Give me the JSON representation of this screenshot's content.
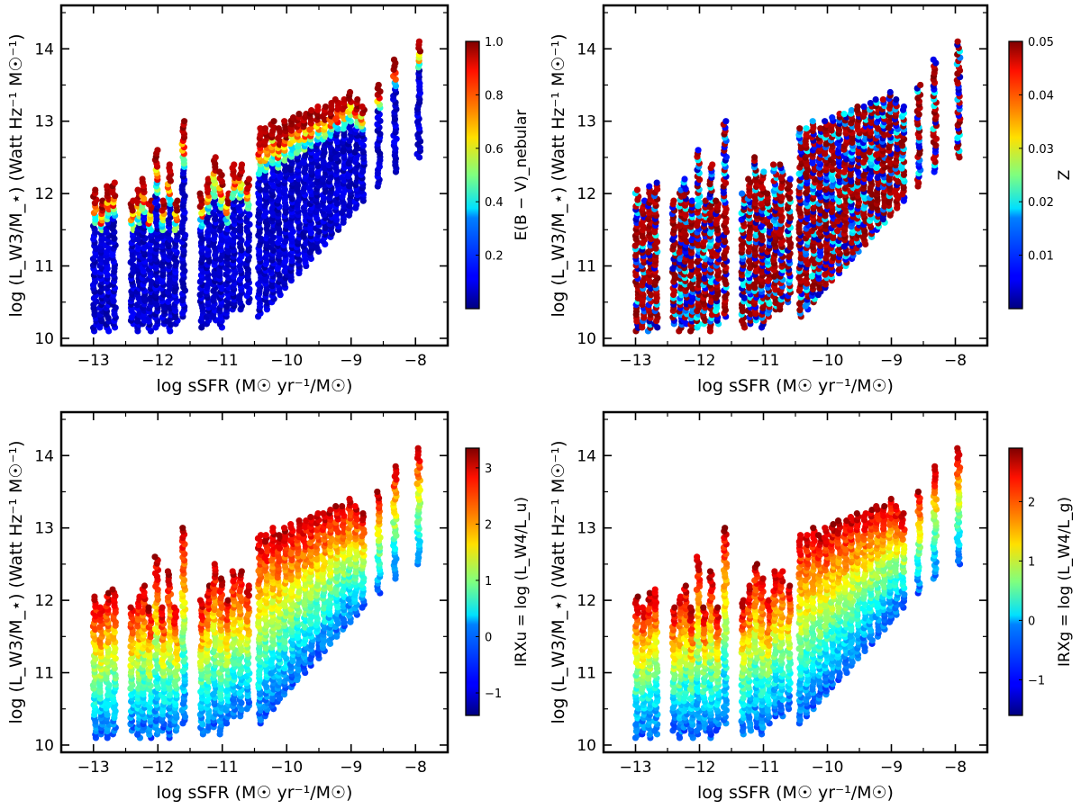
{
  "figure_title": "",
  "chart_data": [
    {
      "type": "scatter",
      "panel": "top-left",
      "xlabel": "log sSFR (M☉ yr⁻¹/M☉)",
      "ylabel": "log (L_W3/M_⋆) (Watt Hz⁻¹ M☉⁻¹)",
      "xlim": [
        -13.5,
        -7.5
      ],
      "ylim": [
        9.9,
        14.6
      ],
      "x_ticks": [
        -13,
        -12,
        -11,
        -10,
        -9,
        -8
      ],
      "x_tick_labels": [
        "−13",
        "−12",
        "−11",
        "−10",
        "−9",
        "−8"
      ],
      "y_ticks": [
        10,
        11,
        12,
        13,
        14
      ],
      "y_tick_labels": [
        "10",
        "11",
        "12",
        "13",
        "14"
      ],
      "colorbar": {
        "label": "E(B − V)_nebular",
        "range": [
          0.0,
          1.0
        ],
        "ticks": [
          0.2,
          0.4,
          0.6,
          0.8,
          1.0
        ],
        "tick_labels": [
          "0.2",
          "0.4",
          "0.6",
          "0.8",
          "1.0"
        ],
        "colormap": "jet"
      },
      "color_pattern": "banded",
      "x_columns": [
        -12.98,
        -12.88,
        -12.78,
        -12.68,
        -12.4,
        -12.3,
        -12.22,
        -12.12,
        -12.02,
        -11.92,
        -11.82,
        -11.72,
        -11.6,
        -11.32,
        -11.22,
        -11.12,
        -11.02,
        -10.92,
        -10.82,
        -10.72,
        -10.6,
        -10.42,
        -10.32,
        -10.22,
        -10.12,
        -10.02,
        -9.92,
        -9.82,
        -9.72,
        -9.62,
        -9.52,
        -9.42,
        -9.32,
        -9.22,
        -9.12,
        -9.02,
        -8.92,
        -8.82,
        -8.57,
        -8.32,
        -7.95
      ],
      "y_bottom": [
        10.1,
        10.15,
        10.1,
        10.15,
        10.2,
        10.1,
        10.2,
        10.1,
        10.15,
        10.2,
        10.1,
        10.2,
        10.3,
        10.15,
        10.2,
        10.25,
        10.15,
        10.3,
        10.4,
        10.4,
        10.5,
        10.3,
        10.4,
        10.5,
        10.6,
        10.7,
        10.8,
        10.9,
        11.0,
        11.1,
        11.2,
        11.3,
        11.4,
        11.5,
        11.6,
        11.7,
        11.8,
        11.9,
        12.1,
        12.3,
        12.5
      ],
      "y_top": [
        12.05,
        11.9,
        12.1,
        12.15,
        11.9,
        12.05,
        12.2,
        11.9,
        12.6,
        11.9,
        12.4,
        11.9,
        13.0,
        12.0,
        12.2,
        12.5,
        12.3,
        12.0,
        12.4,
        12.4,
        12.2,
        12.9,
        12.9,
        13.0,
        12.9,
        13.0,
        13.05,
        13.1,
        13.1,
        13.15,
        13.2,
        13.2,
        13.25,
        13.3,
        13.3,
        13.4,
        13.3,
        13.2,
        13.5,
        13.85,
        14.1
      ]
    },
    {
      "type": "scatter",
      "panel": "top-right",
      "xlabel": "log sSFR (M☉ yr⁻¹/M☉)",
      "ylabel": "log (L_W3/M_⋆) (Watt Hz⁻¹ M☉⁻¹)",
      "xlim": [
        -13.5,
        -7.5
      ],
      "ylim": [
        9.9,
        14.6
      ],
      "x_ticks": [
        -13,
        -12,
        -11,
        -10,
        -9,
        -8
      ],
      "x_tick_labels": [
        "−13",
        "−12",
        "−11",
        "−10",
        "−9",
        "−8"
      ],
      "y_ticks": [
        10,
        11,
        12,
        13,
        14
      ],
      "y_tick_labels": [
        "10",
        "11",
        "12",
        "13",
        "14"
      ],
      "colorbar": {
        "label": "Z",
        "range": [
          0.0,
          0.05
        ],
        "ticks": [
          0.01,
          0.02,
          0.03,
          0.04,
          0.05
        ],
        "tick_labels": [
          "0.01",
          "0.02",
          "0.03",
          "0.04",
          "0.05"
        ],
        "colormap": "jet"
      },
      "color_pattern": "striped",
      "x_columns": [
        -12.98,
        -12.88,
        -12.78,
        -12.68,
        -12.4,
        -12.3,
        -12.22,
        -12.12,
        -12.02,
        -11.92,
        -11.82,
        -11.72,
        -11.6,
        -11.32,
        -11.22,
        -11.12,
        -11.02,
        -10.92,
        -10.82,
        -10.72,
        -10.6,
        -10.42,
        -10.32,
        -10.22,
        -10.12,
        -10.02,
        -9.92,
        -9.82,
        -9.72,
        -9.62,
        -9.52,
        -9.42,
        -9.32,
        -9.22,
        -9.12,
        -9.02,
        -8.92,
        -8.82,
        -8.57,
        -8.32,
        -7.95
      ],
      "y_bottom": [
        10.1,
        10.15,
        10.1,
        10.15,
        10.2,
        10.1,
        10.2,
        10.1,
        10.15,
        10.2,
        10.1,
        10.2,
        10.3,
        10.15,
        10.2,
        10.25,
        10.15,
        10.3,
        10.4,
        10.4,
        10.5,
        10.3,
        10.4,
        10.5,
        10.6,
        10.7,
        10.8,
        10.9,
        11.0,
        11.1,
        11.2,
        11.3,
        11.4,
        11.5,
        11.6,
        11.7,
        11.8,
        11.9,
        12.1,
        12.3,
        12.5
      ],
      "y_top": [
        12.05,
        11.9,
        12.1,
        12.15,
        11.9,
        12.05,
        12.2,
        11.9,
        12.6,
        11.9,
        12.4,
        11.9,
        13.0,
        12.0,
        12.2,
        12.5,
        12.3,
        12.0,
        12.4,
        12.4,
        12.2,
        12.9,
        12.9,
        13.0,
        12.9,
        13.0,
        13.05,
        13.1,
        13.1,
        13.15,
        13.2,
        13.2,
        13.25,
        13.3,
        13.3,
        13.4,
        13.3,
        13.2,
        13.5,
        13.85,
        14.1
      ]
    },
    {
      "type": "scatter",
      "panel": "bottom-left",
      "xlabel": "log sSFR (M☉ yr⁻¹/M☉)",
      "ylabel": "log (L_W3/M_⋆) (Watt Hz⁻¹ M☉⁻¹)",
      "xlim": [
        -13.5,
        -7.5
      ],
      "ylim": [
        9.9,
        14.6
      ],
      "x_ticks": [
        -13,
        -12,
        -11,
        -10,
        -9,
        -8
      ],
      "x_tick_labels": [
        "−13",
        "−12",
        "−11",
        "−10",
        "−9",
        "−8"
      ],
      "y_ticks": [
        10,
        11,
        12,
        13,
        14
      ],
      "y_tick_labels": [
        "10",
        "11",
        "12",
        "13",
        "14"
      ],
      "colorbar": {
        "label": "IRXu = log (L_W4/L_u)",
        "range": [
          -1.4,
          3.35
        ],
        "ticks": [
          -1,
          0,
          1,
          2,
          3
        ],
        "tick_labels": [
          "−1",
          "0",
          "1",
          "2",
          "3"
        ],
        "colormap": "jet"
      },
      "color_pattern": "gradient",
      "x_columns": [
        -12.98,
        -12.88,
        -12.78,
        -12.68,
        -12.4,
        -12.3,
        -12.22,
        -12.12,
        -12.02,
        -11.92,
        -11.82,
        -11.72,
        -11.6,
        -11.32,
        -11.22,
        -11.12,
        -11.02,
        -10.92,
        -10.82,
        -10.72,
        -10.6,
        -10.42,
        -10.32,
        -10.22,
        -10.12,
        -10.02,
        -9.92,
        -9.82,
        -9.72,
        -9.62,
        -9.52,
        -9.42,
        -9.32,
        -9.22,
        -9.12,
        -9.02,
        -8.92,
        -8.82,
        -8.57,
        -8.32,
        -7.95
      ],
      "y_bottom": [
        10.1,
        10.15,
        10.1,
        10.15,
        10.2,
        10.1,
        10.2,
        10.1,
        10.15,
        10.2,
        10.1,
        10.2,
        10.3,
        10.15,
        10.2,
        10.25,
        10.15,
        10.3,
        10.4,
        10.4,
        10.5,
        10.3,
        10.4,
        10.5,
        10.6,
        10.7,
        10.8,
        10.9,
        11.0,
        11.1,
        11.2,
        11.3,
        11.4,
        11.5,
        11.6,
        11.7,
        11.8,
        11.9,
        12.1,
        12.3,
        12.5
      ],
      "y_top": [
        12.05,
        11.9,
        12.1,
        12.15,
        11.9,
        12.05,
        12.2,
        11.9,
        12.6,
        11.9,
        12.4,
        11.9,
        13.0,
        12.0,
        12.2,
        12.5,
        12.3,
        12.0,
        12.4,
        12.4,
        12.2,
        12.9,
        12.9,
        13.0,
        12.9,
        13.0,
        13.05,
        13.1,
        13.1,
        13.15,
        13.2,
        13.2,
        13.25,
        13.3,
        13.3,
        13.4,
        13.3,
        13.2,
        13.5,
        13.85,
        14.1
      ]
    },
    {
      "type": "scatter",
      "panel": "bottom-right",
      "xlabel": "log sSFR (M☉ yr⁻¹/M☉)",
      "ylabel": "log (L_W3/M_⋆) (Watt Hz⁻¹ M☉⁻¹)",
      "xlim": [
        -13.5,
        -7.5
      ],
      "ylim": [
        9.9,
        14.6
      ],
      "x_ticks": [
        -13,
        -12,
        -11,
        -10,
        -9,
        -8
      ],
      "x_tick_labels": [
        "−13",
        "−12",
        "−11",
        "−10",
        "−9",
        "−8"
      ],
      "y_ticks": [
        10,
        11,
        12,
        13,
        14
      ],
      "y_tick_labels": [
        "10",
        "11",
        "12",
        "13",
        "14"
      ],
      "colorbar": {
        "label": "IRXg = log (L_W4/L_g)",
        "range": [
          -1.6,
          2.9
        ],
        "ticks": [
          -1,
          0,
          1,
          2
        ],
        "tick_labels": [
          "−1",
          "0",
          "1",
          "2"
        ],
        "colormap": "jet"
      },
      "color_pattern": "gradient",
      "x_columns": [
        -12.98,
        -12.88,
        -12.78,
        -12.68,
        -12.4,
        -12.3,
        -12.22,
        -12.12,
        -12.02,
        -11.92,
        -11.82,
        -11.72,
        -11.6,
        -11.32,
        -11.22,
        -11.12,
        -11.02,
        -10.92,
        -10.82,
        -10.72,
        -10.6,
        -10.42,
        -10.32,
        -10.22,
        -10.12,
        -10.02,
        -9.92,
        -9.82,
        -9.72,
        -9.62,
        -9.52,
        -9.42,
        -9.32,
        -9.22,
        -9.12,
        -9.02,
        -8.92,
        -8.82,
        -8.57,
        -8.32,
        -7.95
      ],
      "y_bottom": [
        10.1,
        10.15,
        10.1,
        10.15,
        10.2,
        10.1,
        10.2,
        10.1,
        10.15,
        10.2,
        10.1,
        10.2,
        10.3,
        10.15,
        10.2,
        10.25,
        10.15,
        10.3,
        10.4,
        10.4,
        10.5,
        10.3,
        10.4,
        10.5,
        10.6,
        10.7,
        10.8,
        10.9,
        11.0,
        11.1,
        11.2,
        11.3,
        11.4,
        11.5,
        11.6,
        11.7,
        11.8,
        11.9,
        12.1,
        12.3,
        12.5
      ],
      "y_top": [
        12.05,
        11.9,
        12.1,
        12.15,
        11.9,
        12.05,
        12.2,
        11.9,
        12.6,
        11.9,
        12.4,
        11.9,
        13.0,
        12.0,
        12.2,
        12.5,
        12.3,
        12.0,
        12.4,
        12.4,
        12.2,
        12.9,
        12.9,
        13.0,
        12.9,
        13.0,
        13.05,
        13.1,
        13.1,
        13.15,
        13.2,
        13.2,
        13.25,
        13.3,
        13.3,
        13.4,
        13.3,
        13.2,
        13.5,
        13.85,
        14.1
      ]
    }
  ]
}
